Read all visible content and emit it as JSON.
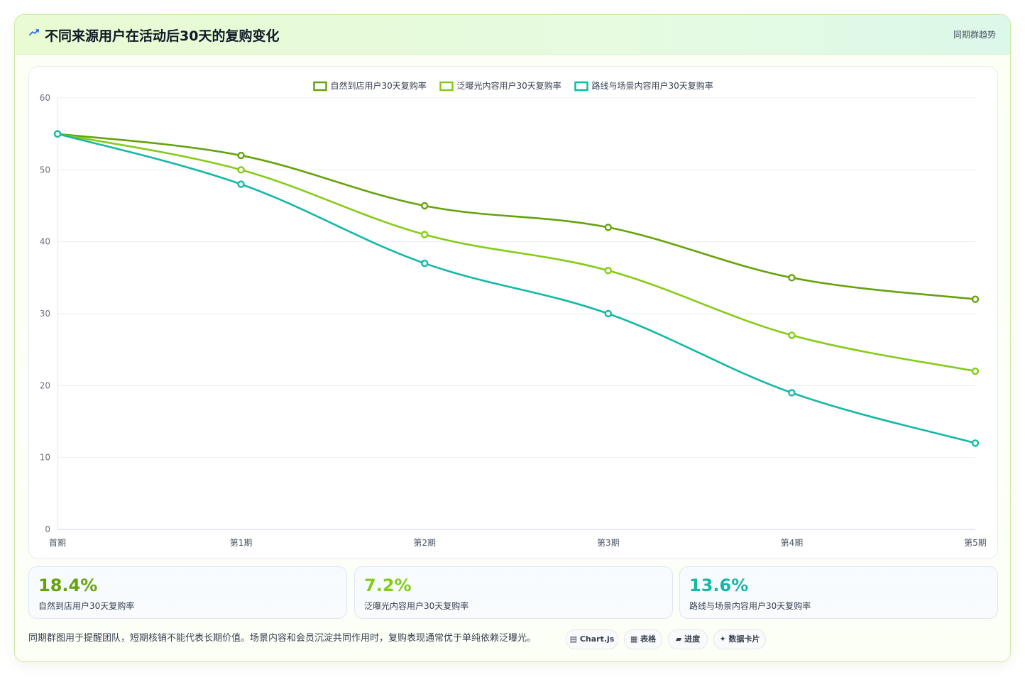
{
  "header": {
    "title": "不同来源用户在活动后30天的复购变化",
    "tag": "同期群趋势"
  },
  "chart_data": {
    "type": "line",
    "categories": [
      "首期",
      "第1期",
      "第2期",
      "第3期",
      "第4期",
      "第5期"
    ],
    "series": [
      {
        "name": "自然到店用户30天复购率",
        "color": "#65a30d",
        "values": [
          55,
          52,
          45,
          42,
          35,
          32
        ]
      },
      {
        "name": "泛曝光内容用户30天复购率",
        "color": "#84cc16",
        "values": [
          55,
          50,
          41,
          36,
          27,
          22
        ]
      },
      {
        "name": "路线与场景内容用户30天复购率",
        "color": "#14b8a6",
        "values": [
          55,
          48,
          37,
          30,
          19,
          12
        ]
      }
    ],
    "ylim": [
      0,
      60
    ],
    "yticks": [
      0,
      10,
      20,
      30,
      40,
      50,
      60
    ],
    "grid": true,
    "legend": "top-center",
    "curve": "smooth"
  },
  "stats": [
    {
      "value": "18.4%",
      "label": "自然到店用户30天复购率",
      "color": "#65a30d"
    },
    {
      "value": "7.2%",
      "label": "泛曝光内容用户30天复购率",
      "color": "#84cc16"
    },
    {
      "value": "13.6%",
      "label": "路线与场景内容用户30天复购率",
      "color": "#14b8a6"
    }
  ],
  "note": "同期群图用于提醒团队，短期核销不能代表长期价值。场景内容和会员沉淀共同作用时，复购表现通常优于单纯依赖泛曝光。",
  "chips": [
    {
      "label": "▤ Chart.js"
    },
    {
      "label": "▦ 表格"
    },
    {
      "label": "▰ 进度"
    },
    {
      "label": "✦ 数据卡片"
    }
  ]
}
